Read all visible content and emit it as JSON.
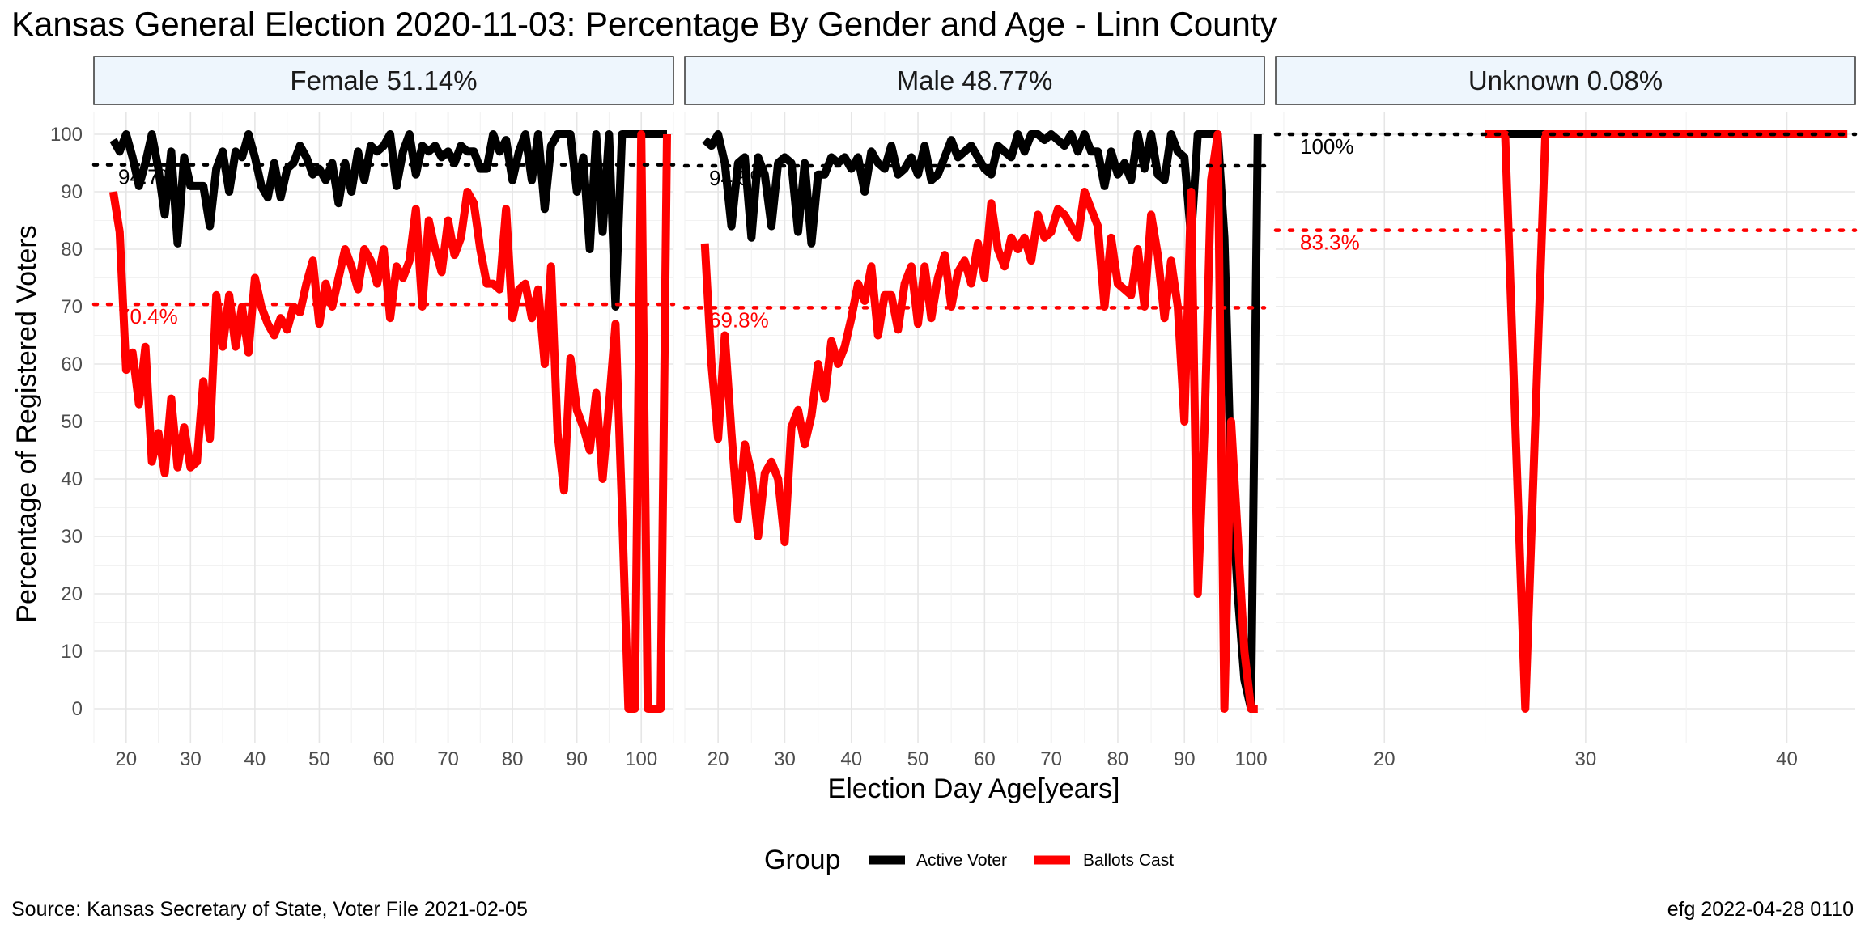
{
  "title": "Kansas General Election 2020-11-03:  Percentage By Gender and Age - Linn County",
  "source": "Source:  Kansas Secretary of State, Voter File  2021-02-05",
  "stamp": "efg 2022-04-28 0110",
  "chart_data": {
    "type": "line",
    "xlabel": "Election Day Age[years]",
    "ylabel": "Percentage of Registered Voters",
    "ylim": [
      0,
      100
    ],
    "yticks": [
      "0",
      "10",
      "20",
      "30",
      "40",
      "50",
      "60",
      "70",
      "80",
      "90",
      "100"
    ],
    "legend": {
      "title": "Group",
      "position": "bottom",
      "items": [
        {
          "label": "Active Voter",
          "color": "#000000"
        },
        {
          "label": "Ballots Cast",
          "color": "#ff0000"
        }
      ]
    },
    "grid": true,
    "panels": [
      {
        "strip": "Female 51.14%",
        "xlim": [
          15,
          105
        ],
        "xticks": [
          "20",
          "30",
          "40",
          "50",
          "60",
          "70",
          "80",
          "90",
          "100"
        ],
        "reference_lines": [
          {
            "series": "Active Voter",
            "value": 94.7,
            "label": "94.7%",
            "color": "#000000"
          },
          {
            "series": "Ballots Cast",
            "value": 70.4,
            "label": "70.4%",
            "color": "#ff0000"
          }
        ],
        "series": [
          {
            "name": "Active Voter",
            "color": "#000000",
            "x": [
              18,
              19,
              20,
              21,
              22,
              23,
              24,
              25,
              26,
              27,
              28,
              29,
              30,
              31,
              32,
              33,
              34,
              35,
              36,
              37,
              38,
              39,
              40,
              41,
              42,
              43,
              44,
              45,
              46,
              47,
              48,
              49,
              50,
              51,
              52,
              53,
              54,
              55,
              56,
              57,
              58,
              59,
              60,
              61,
              62,
              63,
              64,
              65,
              66,
              67,
              68,
              69,
              70,
              71,
              72,
              73,
              74,
              75,
              76,
              77,
              78,
              79,
              80,
              81,
              82,
              83,
              84,
              85,
              86,
              87,
              88,
              89,
              90,
              91,
              92,
              93,
              94,
              95,
              96,
              97,
              98,
              99,
              100,
              101,
              102,
              103,
              104
            ],
            "y": [
              99,
              97,
              100,
              96,
              91,
              95,
              100,
              94,
              86,
              97,
              81,
              96,
              91,
              91,
              91,
              84,
              94,
              97,
              90,
              97,
              96,
              100,
              96,
              91,
              89,
              95,
              89,
              94,
              95,
              98,
              96,
              93,
              94,
              92,
              95,
              88,
              95,
              90,
              97,
              92,
              98,
              97,
              98,
              100,
              91,
              97,
              100,
              93,
              98,
              97,
              98,
              96,
              97,
              95,
              98,
              97,
              97,
              94,
              94,
              100,
              97,
              99,
              92,
              97,
              100,
              92,
              100,
              87,
              98,
              100,
              100,
              100,
              90,
              96,
              80,
              100,
              83,
              100,
              70,
              100,
              100,
              100,
              100,
              100,
              100,
              100,
              100
            ]
          },
          {
            "name": "Ballots Cast",
            "color": "#ff0000",
            "x": [
              18,
              19,
              20,
              21,
              22,
              23,
              24,
              25,
              26,
              27,
              28,
              29,
              30,
              31,
              32,
              33,
              34,
              35,
              36,
              37,
              38,
              39,
              40,
              41,
              42,
              43,
              44,
              45,
              46,
              47,
              48,
              49,
              50,
              51,
              52,
              53,
              54,
              55,
              56,
              57,
              58,
              59,
              60,
              61,
              62,
              63,
              64,
              65,
              66,
              67,
              68,
              69,
              70,
              71,
              72,
              73,
              74,
              75,
              76,
              77,
              78,
              79,
              80,
              81,
              82,
              83,
              84,
              85,
              86,
              87,
              88,
              89,
              90,
              91,
              92,
              93,
              94,
              95,
              96,
              97,
              98,
              99,
              100,
              101,
              102,
              103,
              104
            ],
            "y": [
              90,
              83,
              59,
              62,
              53,
              63,
              43,
              48,
              41,
              54,
              42,
              49,
              42,
              43,
              57,
              47,
              72,
              63,
              72,
              63,
              70,
              62,
              75,
              70,
              67,
              65,
              68,
              66,
              70,
              69,
              74,
              78,
              67,
              74,
              70,
              75,
              80,
              77,
              73,
              80,
              78,
              74,
              80,
              68,
              77,
              75,
              78,
              87,
              70,
              85,
              80,
              76,
              85,
              79,
              82,
              90,
              88,
              80,
              74,
              74,
              73,
              87,
              68,
              73,
              74,
              68,
              73,
              60,
              77,
              48,
              38,
              61,
              52,
              49,
              45,
              55,
              40,
              53,
              67,
              35,
              0,
              0,
              100,
              0,
              0,
              0,
              100
            ]
          }
        ]
      },
      {
        "strip": "Male 48.77%",
        "xlim": [
          15,
          102
        ],
        "xticks": [
          "20",
          "30",
          "40",
          "50",
          "60",
          "70",
          "80",
          "90",
          "100"
        ],
        "reference_lines": [
          {
            "series": "Active Voter",
            "value": 94.5,
            "label": "94.5%",
            "color": "#000000"
          },
          {
            "series": "Ballots Cast",
            "value": 69.8,
            "label": "69.8%",
            "color": "#ff0000"
          }
        ],
        "series": [
          {
            "name": "Active Voter",
            "color": "#000000",
            "x": [
              18,
              19,
              20,
              21,
              22,
              23,
              24,
              25,
              26,
              27,
              28,
              29,
              30,
              31,
              32,
              33,
              34,
              35,
              36,
              37,
              38,
              39,
              40,
              41,
              42,
              43,
              44,
              45,
              46,
              47,
              48,
              49,
              50,
              51,
              52,
              53,
              54,
              55,
              56,
              57,
              58,
              59,
              60,
              61,
              62,
              63,
              64,
              65,
              66,
              67,
              68,
              69,
              70,
              71,
              72,
              73,
              74,
              75,
              76,
              77,
              78,
              79,
              80,
              81,
              82,
              83,
              84,
              85,
              86,
              87,
              88,
              89,
              90,
              91,
              92,
              93,
              94,
              95,
              96,
              97,
              98,
              99,
              100,
              101
            ],
            "y": [
              99,
              98,
              100,
              95,
              84,
              95,
              96,
              82,
              96,
              93,
              84,
              95,
              96,
              95,
              83,
              95,
              81,
              93,
              93,
              96,
              95,
              96,
              94,
              96,
              90,
              97,
              95,
              94,
              98,
              93,
              94,
              96,
              93,
              98,
              92,
              93,
              96,
              99,
              96,
              97,
              98,
              96,
              94,
              93,
              98,
              97,
              96,
              100,
              97,
              100,
              100,
              99,
              100,
              99,
              98,
              100,
              97,
              100,
              97,
              97,
              91,
              97,
              93,
              95,
              92,
              100,
              94,
              100,
              93,
              92,
              100,
              97,
              96,
              82,
              100,
              100,
              100,
              100,
              82,
              40,
              20,
              5,
              0,
              100
            ]
          },
          {
            "name": "Ballots Cast",
            "color": "#ff0000",
            "x": [
              18,
              19,
              20,
              21,
              22,
              23,
              24,
              25,
              26,
              27,
              28,
              29,
              30,
              31,
              32,
              33,
              34,
              35,
              36,
              37,
              38,
              39,
              40,
              41,
              42,
              43,
              44,
              45,
              46,
              47,
              48,
              49,
              50,
              51,
              52,
              53,
              54,
              55,
              56,
              57,
              58,
              59,
              60,
              61,
              62,
              63,
              64,
              65,
              66,
              67,
              68,
              69,
              70,
              71,
              72,
              73,
              74,
              75,
              76,
              77,
              78,
              79,
              80,
              81,
              82,
              83,
              84,
              85,
              86,
              87,
              88,
              89,
              90,
              91,
              92,
              93,
              94,
              95,
              96,
              97,
              98,
              99,
              100,
              101
            ],
            "y": [
              81,
              60,
              47,
              65,
              48,
              33,
              46,
              41,
              30,
              41,
              43,
              40,
              29,
              49,
              52,
              46,
              51,
              60,
              54,
              64,
              60,
              63,
              68,
              74,
              71,
              77,
              65,
              72,
              72,
              66,
              74,
              77,
              67,
              77,
              68,
              75,
              79,
              70,
              76,
              78,
              74,
              81,
              75,
              88,
              80,
              77,
              82,
              80,
              82,
              78,
              86,
              82,
              83,
              87,
              86,
              84,
              82,
              90,
              87,
              84,
              70,
              82,
              74,
              73,
              72,
              80,
              70,
              86,
              79,
              68,
              78,
              70,
              50,
              90,
              20,
              48,
              92,
              100,
              0,
              50,
              30,
              10,
              0,
              0
            ]
          }
        ]
      },
      {
        "strip": "Unknown 0.08%",
        "xlim": [
          14.6,
          43.4
        ],
        "xticks": [
          "20",
          "30",
          "40"
        ],
        "reference_lines": [
          {
            "series": "Active Voter",
            "value": 100,
            "label": "100%",
            "color": "#000000"
          },
          {
            "series": "Ballots Cast",
            "value": 83.3,
            "label": "83.3%",
            "color": "#ff0000"
          }
        ],
        "series": [
          {
            "name": "Active Voter",
            "color": "#000000",
            "x": [
              25,
              26,
              27,
              28,
              29,
              30,
              31,
              32,
              33,
              34,
              35,
              36,
              37,
              38,
              39,
              40,
              41,
              42,
              43
            ],
            "y": [
              100,
              100,
              100,
              100,
              100,
              100,
              100,
              100,
              100,
              100,
              100,
              100,
              100,
              100,
              100,
              100,
              100,
              100,
              100
            ]
          },
          {
            "name": "Ballots Cast",
            "color": "#ff0000",
            "x": [
              25,
              26,
              27,
              28,
              29,
              30,
              31,
              32,
              33,
              34,
              35,
              36,
              37,
              38,
              39,
              40,
              41,
              42,
              43
            ],
            "y": [
              100,
              100,
              0,
              100,
              100,
              100,
              100,
              100,
              100,
              100,
              100,
              100,
              100,
              100,
              100,
              100,
              100,
              100,
              100
            ]
          }
        ]
      }
    ]
  }
}
